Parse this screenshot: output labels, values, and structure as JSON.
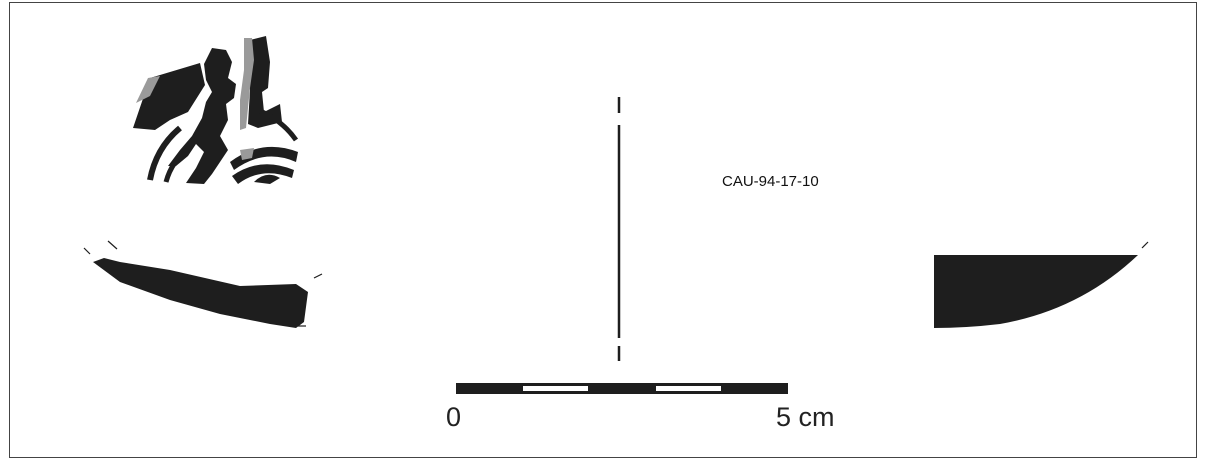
{
  "catalog_number": "CAU-94-17-10",
  "scale_bar": {
    "start_label": "0",
    "end_label": "5 cm",
    "segments": 5
  },
  "colors": {
    "sherd_fill": "#1e1e1e",
    "slip_gray": "#9a9a9a",
    "frame": "#444444"
  }
}
